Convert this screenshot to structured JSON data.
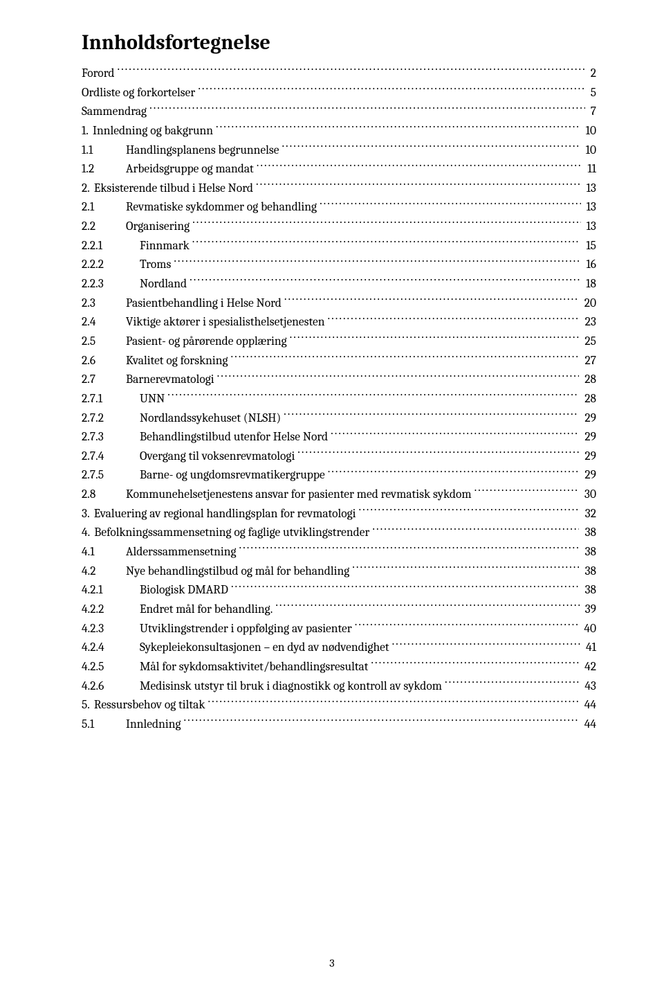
{
  "title": "Innholdsfortegnelse",
  "page_number": "3",
  "typography": {
    "title_fontsize_pt": 22,
    "row_fontsize_pt": 13,
    "font_family": "Cambria",
    "color": "#000000",
    "background": "#ffffff",
    "leader_char": "."
  },
  "entries": [
    {
      "level": 1,
      "num": "",
      "label": "Forord",
      "page": "2"
    },
    {
      "level": 1,
      "num": "",
      "label": "Ordliste og forkortelser",
      "page": "5"
    },
    {
      "level": 1,
      "num": "",
      "label": "Sammendrag",
      "page": "7"
    },
    {
      "level": 1,
      "num": "1.",
      "label": "Innledning og bakgrunn",
      "page": "10"
    },
    {
      "level": 2,
      "num": "1.1",
      "label": "Handlingsplanens begrunnelse",
      "page": "10"
    },
    {
      "level": 2,
      "num": "1.2",
      "label": "Arbeidsgruppe og mandat",
      "page": "11"
    },
    {
      "level": 1,
      "num": "2.",
      "label": "Eksisterende tilbud i Helse Nord",
      "page": "13"
    },
    {
      "level": 2,
      "num": "2.1",
      "label": "Revmatiske sykdommer og behandling",
      "page": "13"
    },
    {
      "level": 2,
      "num": "2.2",
      "label": "Organisering",
      "page": "13"
    },
    {
      "level": 3,
      "num": "2.2.1",
      "label": "Finnmark",
      "page": "15"
    },
    {
      "level": 3,
      "num": "2.2.2",
      "label": "Troms",
      "page": "16"
    },
    {
      "level": 3,
      "num": "2.2.3",
      "label": "Nordland",
      "page": "18"
    },
    {
      "level": 2,
      "num": "2.3",
      "label": "Pasientbehandling i Helse Nord",
      "page": "20"
    },
    {
      "level": 2,
      "num": "2.4",
      "label": "Viktige aktører i spesialisthelsetjenesten",
      "page": "23"
    },
    {
      "level": 2,
      "num": "2.5",
      "label": "Pasient- og pårørende opplæring",
      "page": "25"
    },
    {
      "level": 2,
      "num": "2.6",
      "label": "Kvalitet og forskning",
      "page": "27"
    },
    {
      "level": 2,
      "num": "2.7",
      "label": "Barnerevmatologi",
      "page": "28"
    },
    {
      "level": 3,
      "num": "2.7.1",
      "label": "UNN",
      "page": "28"
    },
    {
      "level": 3,
      "num": "2.7.2",
      "label": "Nordlandssykehuset (NLSH)",
      "page": "29"
    },
    {
      "level": 3,
      "num": "2.7.3",
      "label": "Behandlingstilbud utenfor Helse Nord",
      "page": "29"
    },
    {
      "level": 3,
      "num": "2.7.4",
      "label": "Overgang til voksenrevmatologi",
      "page": "29"
    },
    {
      "level": 3,
      "num": "2.7.5",
      "label": "Barne- og ungdomsrevmatikergruppe",
      "page": "29"
    },
    {
      "level": 2,
      "num": "2.8",
      "label": "Kommunehelsetjenestens ansvar for pasienter med revmatisk sykdom",
      "page": "30"
    },
    {
      "level": 1,
      "num": "3.",
      "label": "Evaluering av regional handlingsplan for revmatologi",
      "page": "32"
    },
    {
      "level": 1,
      "num": "4.",
      "label": "Befolkningssammensetning og faglige utviklingstrender",
      "page": "38"
    },
    {
      "level": 2,
      "num": "4.1",
      "label": "Alderssammensetning",
      "page": "38"
    },
    {
      "level": 2,
      "num": "4.2",
      "label": "Nye behandlingstilbud og mål for behandling",
      "page": "38"
    },
    {
      "level": 3,
      "num": "4.2.1",
      "label": "Biologisk DMARD",
      "page": "38"
    },
    {
      "level": 3,
      "num": "4.2.2",
      "label": "Endret mål for behandling.",
      "page": "39"
    },
    {
      "level": 3,
      "num": "4.2.3",
      "label": "Utviklingstrender i oppfølging av pasienter",
      "page": "40"
    },
    {
      "level": 3,
      "num": "4.2.4",
      "label": "Sykepleiekonsultasjonen – en dyd av nødvendighet",
      "page": "41"
    },
    {
      "level": 3,
      "num": "4.2.5",
      "label": "Mål for sykdomsaktivitet/behandlingsresultat",
      "page": "42"
    },
    {
      "level": 3,
      "num": "4.2.6",
      "label": "Medisinsk utstyr til bruk i diagnostikk og kontroll av sykdom",
      "page": "43"
    },
    {
      "level": 1,
      "num": "5.",
      "label": "Ressursbehov og tiltak",
      "page": "44"
    },
    {
      "level": 2,
      "num": "5.1",
      "label": "Innledning",
      "page": "44"
    }
  ]
}
